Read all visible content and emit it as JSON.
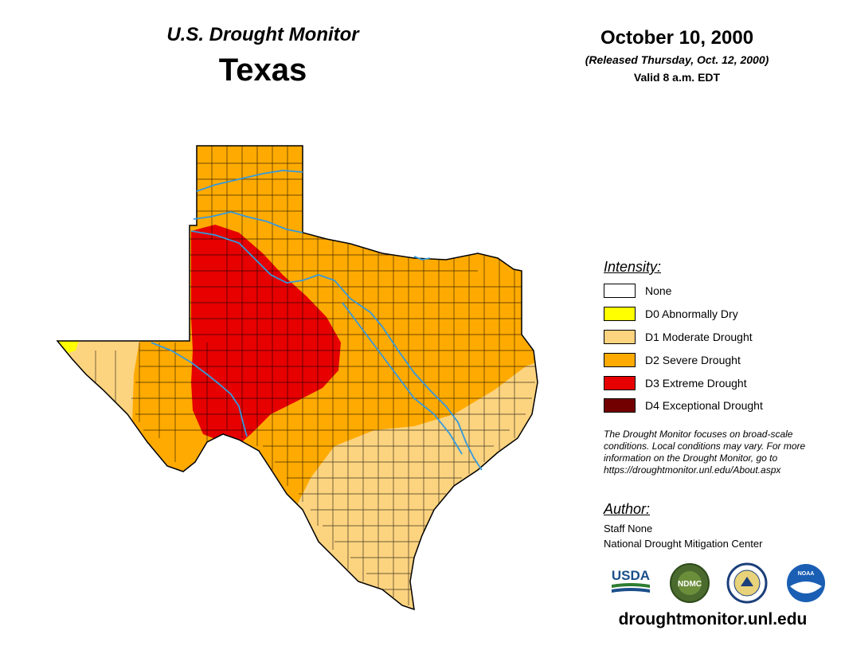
{
  "header": {
    "monitor_title": "U.S. Drought Monitor",
    "state": "Texas",
    "date": "October 10, 2000",
    "released": "(Released Thursday, Oct. 12, 2000)",
    "valid": "Valid 8 a.m. EDT"
  },
  "legend": {
    "title": "Intensity:",
    "items": [
      {
        "label": "None",
        "color": "#ffffff"
      },
      {
        "label": "D0 Abnormally Dry",
        "color": "#ffff00"
      },
      {
        "label": "D1 Moderate Drought",
        "color": "#fcd37f"
      },
      {
        "label": "D2 Severe Drought",
        "color": "#ffaa00"
      },
      {
        "label": "D3 Extreme Drought",
        "color": "#e60000"
      },
      {
        "label": "D4 Exceptional Drought",
        "color": "#730000"
      }
    ]
  },
  "note": "The Drought Monitor focuses on broad-scale conditions. Local conditions may vary. For more information on the Drought Monitor, go to https://droughtmonitor.unl.edu/About.aspx",
  "author": {
    "title": "Author:",
    "name": "Staff None",
    "org": "National Drought Mitigation Center"
  },
  "logos": {
    "usda": "USDA",
    "ndmc": "NDMC",
    "commerce": "department-of-commerce-seal",
    "noaa": "NOAA"
  },
  "footer_url": "droughtmonitor.unl.edu",
  "colors": {
    "river": "#3399dd",
    "county_line": "#000000"
  }
}
